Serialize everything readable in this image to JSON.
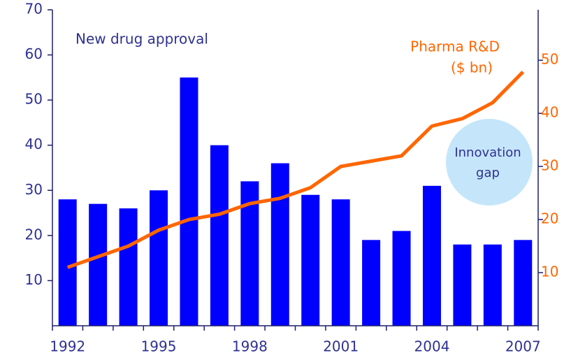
{
  "chart_data": {
    "type": "bar-line",
    "categories": [
      "1992",
      null,
      null,
      "1995",
      null,
      null,
      "1998",
      null,
      null,
      "2001",
      null,
      null,
      "2004",
      null,
      null,
      "2007"
    ],
    "series": [
      {
        "name": "New drug approval",
        "color": "#0000ff",
        "type": "bar",
        "values": [
          28,
          27,
          26,
          30,
          55,
          40,
          32,
          36,
          29,
          28,
          19,
          21,
          31,
          18,
          18,
          19
        ]
      },
      {
        "name": "Pharma R&D",
        "color": "#ff6600",
        "type": "line",
        "axis": "y2",
        "values": [
          11,
          13,
          15,
          18,
          20,
          21,
          23,
          24,
          26,
          30,
          31,
          32,
          37.6,
          39,
          42,
          47.8
        ]
      }
    ],
    "y2_unit": "($ bn)",
    "annotation": [
      "Innovation",
      "gap"
    ],
    "ylim": [
      0,
      70
    ],
    "yticks": [
      10,
      20,
      30,
      40,
      50,
      60,
      70
    ],
    "y2lim": [
      0,
      59.5
    ],
    "y2ticks": [
      10,
      20,
      30,
      40,
      50
    ]
  }
}
